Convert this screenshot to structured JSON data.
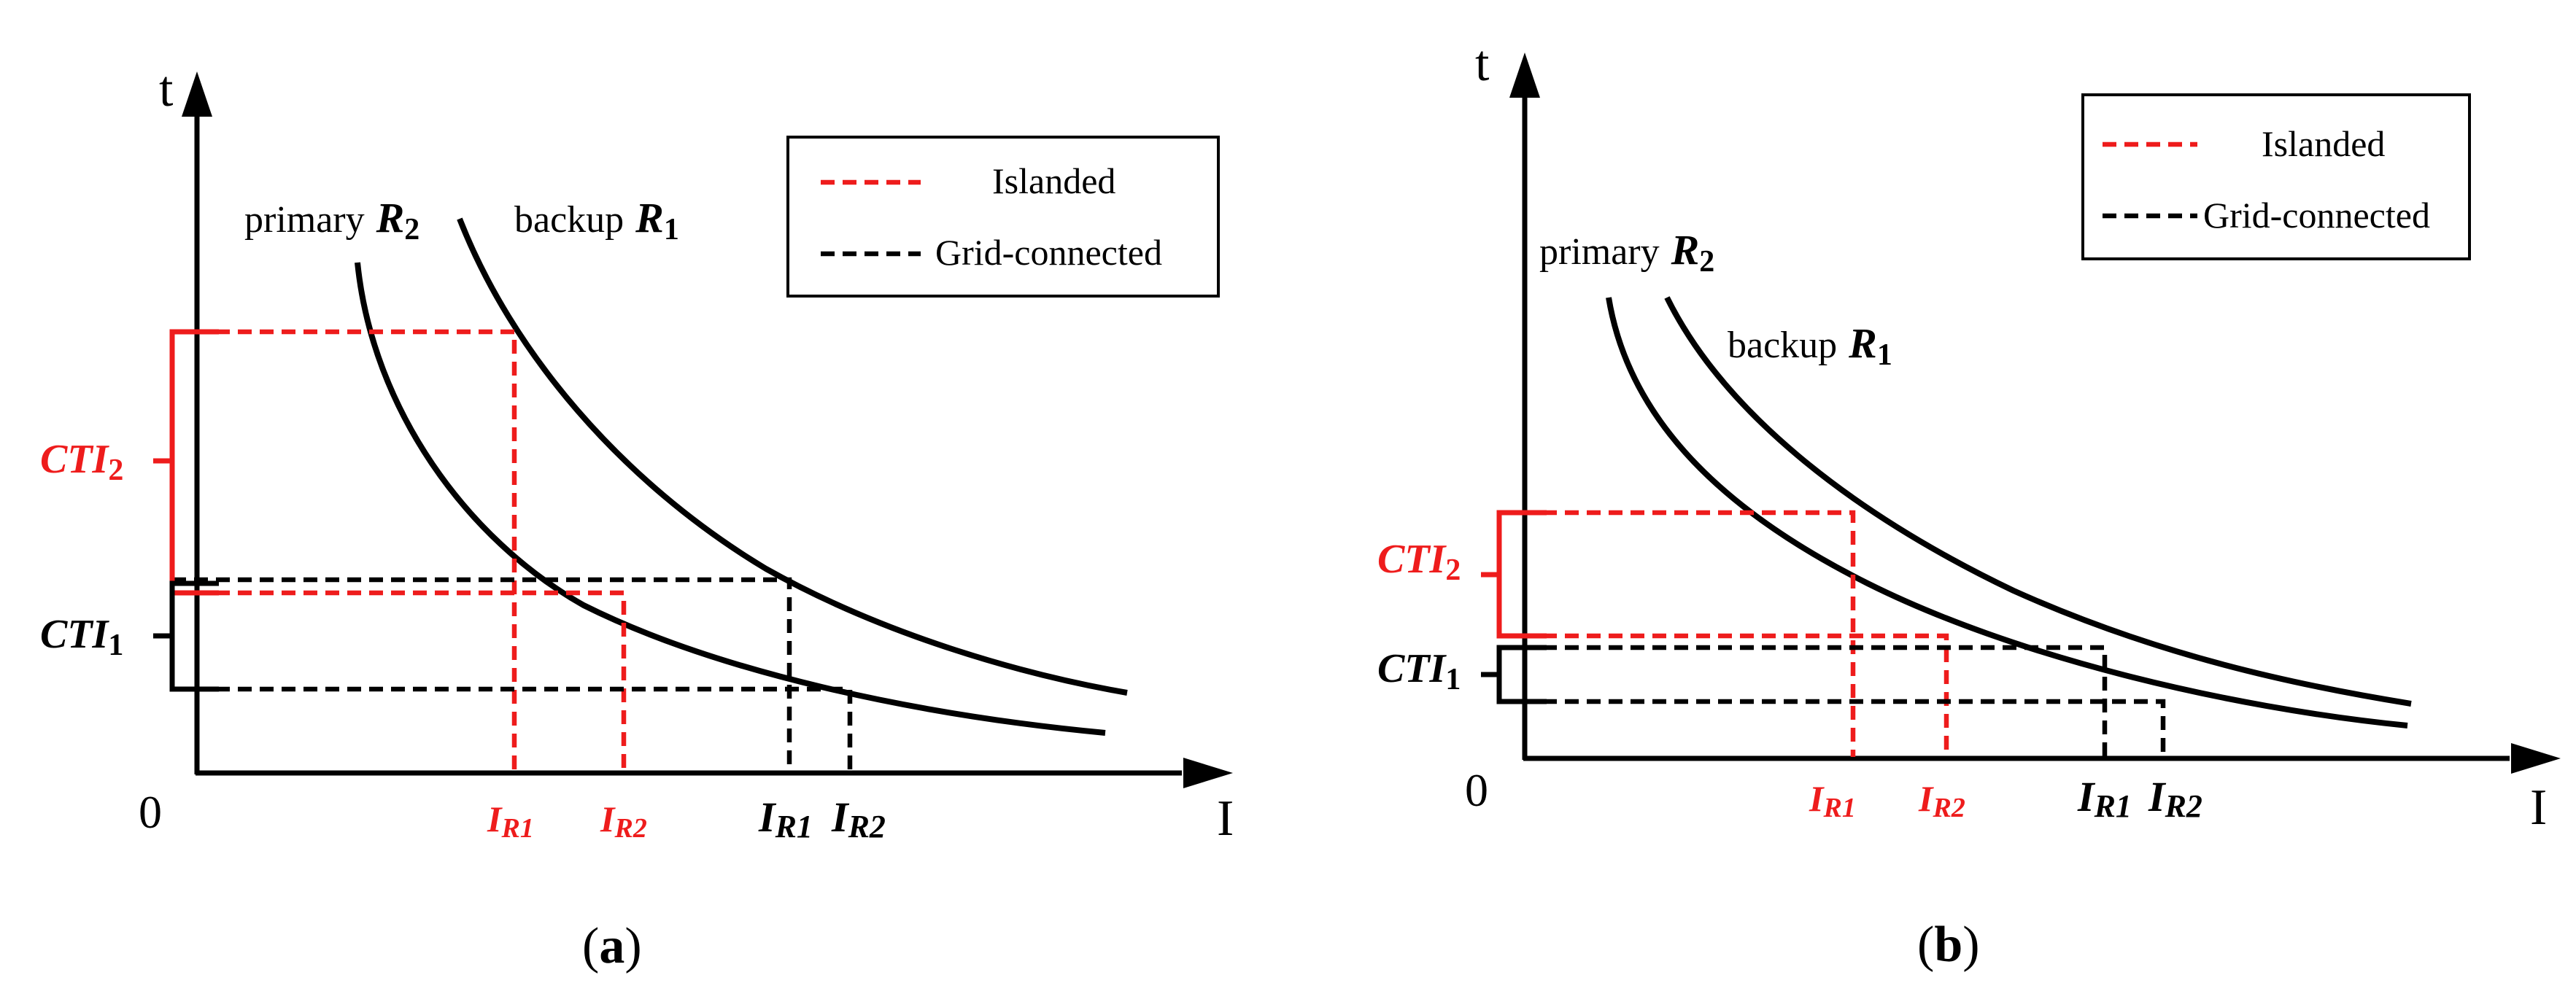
{
  "legend": {
    "islanded": "Islanded",
    "grid_connected": "Grid-connected"
  },
  "colors": {
    "islanded": "#ee1c1c",
    "grid_connected": "#000000"
  },
  "axes": {
    "y_label": "t",
    "x_label": "I",
    "origin": "0"
  },
  "relays": {
    "primary_word": "primary",
    "primary_sym": "R",
    "primary_sub": "2",
    "backup_word": "backup",
    "backup_sym": "R",
    "backup_sub": "1"
  },
  "cti": {
    "sym": "CTI",
    "sub1": "1",
    "sub2": "2"
  },
  "current_labels": {
    "sym": "I",
    "sub_r1": "R1",
    "sub_r2": "R2"
  },
  "panels": {
    "a": {
      "open": "(",
      "letter": "a",
      "close": ")"
    },
    "b": {
      "open": "(",
      "letter": "b",
      "close": ")"
    }
  }
}
